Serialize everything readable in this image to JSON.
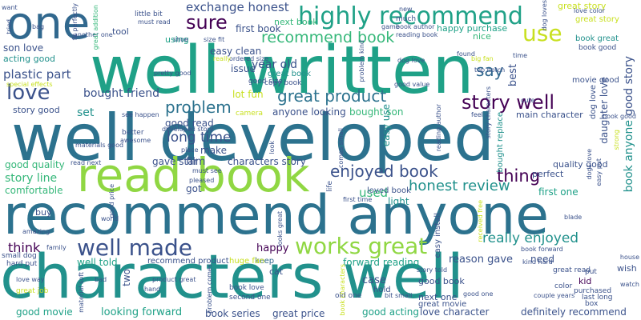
{
  "palette": {
    "purple_dark": "#440154",
    "indigo": "#3b528b",
    "blue": "#31688e",
    "teal_blue": "#2c728e",
    "teal": "#21918c",
    "sea_green": "#1fa187",
    "green": "#35b779",
    "lime": "#90d743",
    "yellow_green": "#c8e020"
  },
  "words": {
    "well_written": "well written",
    "well_developed": "well developed",
    "recommend_anyone": "recommend anyone",
    "characters_well": "characters well",
    "read_book": "read book",
    "one": "one",
    "highly_recommend": "highly recommend",
    "great_story": "great story",
    "use": "use",
    "exchange_honest": "exchange honest",
    "recommend_book": "recommend book",
    "next_book": "next book",
    "sure": "sure",
    "first_book": "first book",
    "happy_purchase": "happy purchase",
    "nice": "nice",
    "year_old": "year old",
    "easy_clean": "easy clean",
    "plastic_part": "plastic part",
    "son_love": "son love",
    "love": "love",
    "acting_good": "acting good",
    "great_book": "great book",
    "story_well": "story well",
    "great_product": "great product",
    "problem": "problem",
    "bought_friend": "bought friend",
    "enjoyed_book": "enjoyed book",
    "thing": "thing",
    "honest_review": "honest review",
    "long_time": "long time",
    "good_story": "good story",
    "book_great": "book great",
    "book_good": "book good",
    "movie_good": "movie good",
    "say": "say",
    "best": "best",
    "story_good": "story good",
    "good_quality": "good quality",
    "story_line": "story line",
    "comfortable": "comfortable",
    "gave_star": "gave star",
    "film": "film",
    "characters_story": "characters story",
    "used": "used",
    "light": "light",
    "first_one": "first one",
    "perfect": "perfect",
    "quality_good": "quality good",
    "well_made": "well made",
    "works_great": "works great",
    "really_enjoyed": "really enjoyed",
    "think": "think",
    "happy": "happy",
    "keep": "keep",
    "forward_reading": "forward reading",
    "reason_gave": "reason gave",
    "need": "need",
    "recommend_product": "recommend product",
    "well_told": "well told",
    "huge_fan": "huge fan",
    "cat": "cat",
    "case": "case",
    "good_book": "good book",
    "kid": "kid",
    "wish": "wish",
    "good_movie": "good movie",
    "looking_forward": "looking forward",
    "book_series": "book series",
    "great_price": "great price",
    "good_acting": "good acting",
    "love_character": "love character",
    "definitely_recommend": "definitely recommend",
    "next_one": "next one",
    "great_movie": "great movie",
    "loved_book": "loved book",
    "bought_son": "bought son",
    "easy_use": "easy use",
    "anyone_looking": "anyone looking",
    "good_read": "good read",
    "lot_fun": "lot fun",
    "issue": "issue",
    "make": "make",
    "set": "set",
    "story_good_2": "story good",
    "got": "got",
    "buy": "buy",
    "two": "two",
    "dog_love": "dog love",
    "book_anyone": "book anyone",
    "main_character": "main character",
    "daughter_love": "daughter love",
    "using": "using",
    "tool": "tool",
    "little_bit": "little bit",
    "must_read": "must read",
    "good_size": "good size",
    "size_fit": "size fit",
    "ordered_size": "ordered size",
    "copy_book": "copy book",
    "top_notch": "top notch",
    "reading_book": "reading book",
    "book_author": "book author",
    "much": "much",
    "love_color": "love color",
    "book_good_small": "book good",
    "dog_one": "dog one",
    "game": "game",
    "great_read": "great read",
    "old_one": "old one",
    "bit_small": "bit small",
    "second_one": "second one",
    "book_love": "book love",
    "purchased": "purchased",
    "last_long": "last long",
    "couple_years": "couple years",
    "box": "box",
    "watch": "watch",
    "house": "house",
    "put": "put",
    "color": "color",
    "kind_hard": "kind hard",
    "book_forward": "book forward",
    "hold": "hold",
    "story_told": "story told",
    "product_great": "product great",
    "bad": "bad",
    "hand": "hand",
    "great_job": "great job",
    "love_way": "love way",
    "hard_put": "hard put",
    "small_dog": "small dog",
    "amazing": "amazing",
    "family": "family",
    "world": "world",
    "blade": "blade",
    "first_time": "first time",
    "easy_install": "easy install",
    "pleased": "pleased",
    "camera": "camera",
    "place": "place",
    "better": "better",
    "awesome": "awesome",
    "materials_good": "materials good",
    "read_next": "read next",
    "special_effects": "special effects",
    "pretty_good": "pretty good",
    "really": "really",
    "dog_loves": "dog loves",
    "great_addition": "great addition",
    "fit_perfectly": "fit perfectly",
    "bag": "bag",
    "tried": "tried",
    "want": "want",
    "another_one": "another one",
    "feel": "feel",
    "cute": "cute",
    "time": "time",
    "found": "found",
    "big_fan": "big fan",
    "good_value": "good value",
    "look": "look",
    "shoe": "shoe",
    "see_happen": "see happen",
    "must_see": "must see",
    "good_price": "good price",
    "developed_story": "developed story",
    "life": "life",
    "easy_put": "easy put",
    "strong": "strong",
    "dogs_love": "dogs love",
    "looks_great": "looks great",
    "comes_small": "comes small",
    "received_free": "received free",
    "bought_replace": "bought replace",
    "book_characters": "book characters",
    "problem_kind": "problem kind",
    "problem_comes": "problem comes",
    "story_characters": "story characters",
    "good_one": "good one",
    "material_soft": "material soft",
    "new": "new",
    "reading_author": "reading author",
    "reading_good": "reading good",
    "side_ever": "side ever",
    "book_exchange": "book exchange",
    "book_review": "book review",
    "read_read": "read read",
    "book_read": "book read"
  }
}
